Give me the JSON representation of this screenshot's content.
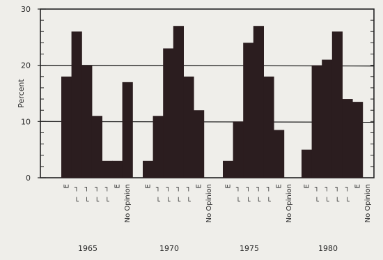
{
  "chart_data": {
    "type": "bar",
    "ylabel": "Percent",
    "ylim": [
      0,
      30
    ],
    "yticks": [
      0,
      10,
      20,
      30
    ],
    "reference_lines": [
      10,
      20
    ],
    "bar_color": "#2b1d1f",
    "category_tick_marks": [
      "E",
      "",
      "",
      "",
      "",
      "E",
      "No Opinion"
    ],
    "groups": [
      {
        "label": "1965",
        "values": [
          18,
          26,
          20,
          11,
          3,
          3,
          17
        ]
      },
      {
        "label": "1970",
        "values": [
          3,
          11,
          23,
          27,
          18,
          12
        ]
      },
      {
        "label": "1975",
        "values": [
          3,
          10,
          24,
          27,
          18,
          8.5
        ]
      },
      {
        "label": "1980",
        "values": [
          5,
          20,
          21,
          26,
          14,
          13.5
        ]
      }
    ]
  }
}
